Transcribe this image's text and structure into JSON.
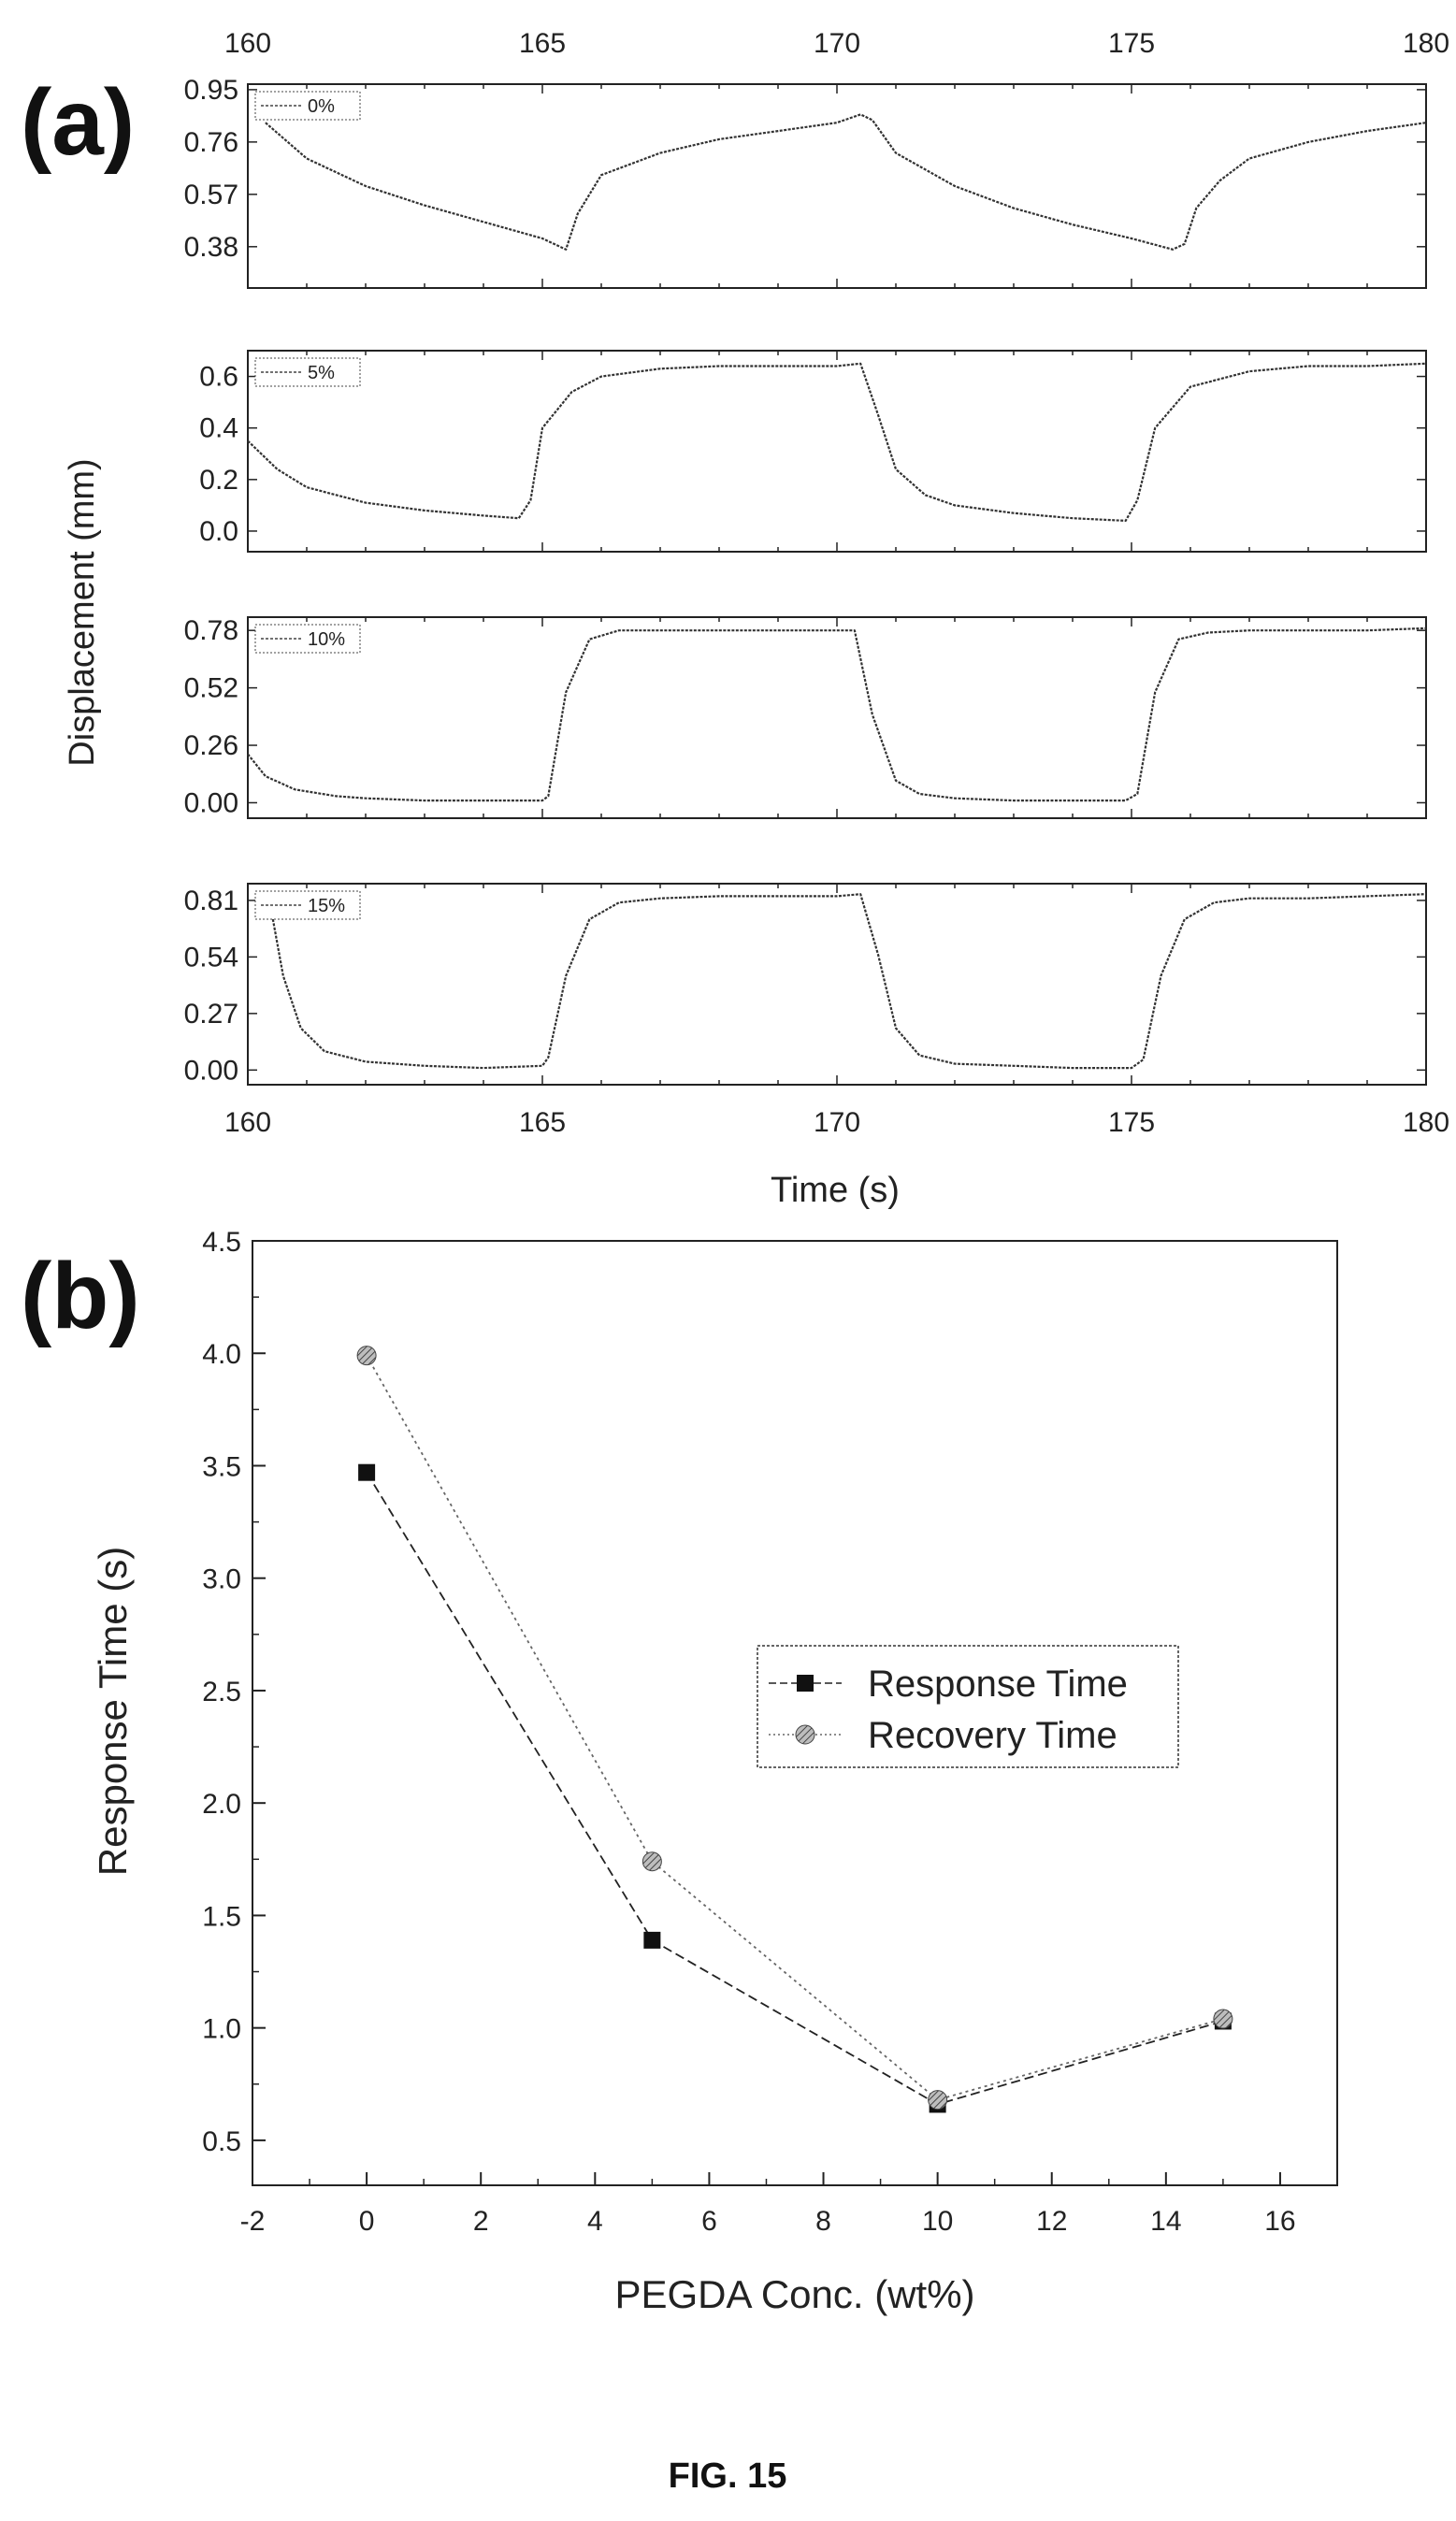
{
  "figure_caption": "FIG. 15",
  "chart_data": [
    {
      "type": "line",
      "panel_label": "(a)",
      "xlabel": "Time (s)",
      "ylabel": "Displacement (mm)",
      "x_ticks": [
        "160",
        "165",
        "170",
        "175",
        "180"
      ],
      "xlim": [
        160,
        180
      ],
      "grid": false,
      "subplots": [
        {
          "legend": "0%",
          "ylim": [
            0.23,
            0.97
          ],
          "y_ticks": [
            "0.95",
            "0.76",
            "0.57",
            "0.38"
          ],
          "y_tick_values": [
            0.95,
            0.76,
            0.57,
            0.38
          ],
          "x": [
            160.3,
            161,
            162,
            163,
            164,
            165,
            165.2,
            165.4,
            165.6,
            166,
            167,
            168,
            169,
            170,
            170.4,
            170.6,
            171,
            172,
            173,
            174,
            175,
            175.7,
            175.9,
            176.1,
            176.5,
            177,
            178,
            179,
            180
          ],
          "y": [
            0.83,
            0.7,
            0.6,
            0.53,
            0.47,
            0.41,
            0.39,
            0.37,
            0.5,
            0.64,
            0.72,
            0.77,
            0.8,
            0.83,
            0.86,
            0.84,
            0.72,
            0.6,
            0.52,
            0.46,
            0.41,
            0.37,
            0.39,
            0.52,
            0.62,
            0.7,
            0.76,
            0.8,
            0.83
          ]
        },
        {
          "legend": "5%",
          "ylim": [
            -0.08,
            0.7
          ],
          "y_ticks": [
            "0.6",
            "0.4",
            "0.2",
            "0.0"
          ],
          "y_tick_values": [
            0.6,
            0.4,
            0.2,
            0.0
          ],
          "x": [
            160,
            160.5,
            161,
            162,
            163,
            164,
            164.6,
            164.8,
            165,
            165.5,
            166,
            167,
            168,
            169,
            170,
            170.4,
            170.7,
            171,
            171.5,
            172,
            173,
            174,
            174.9,
            175.1,
            175.4,
            176,
            177,
            178,
            179,
            180
          ],
          "y": [
            0.35,
            0.24,
            0.17,
            0.11,
            0.08,
            0.06,
            0.05,
            0.12,
            0.4,
            0.54,
            0.6,
            0.63,
            0.64,
            0.64,
            0.64,
            0.65,
            0.45,
            0.24,
            0.14,
            0.1,
            0.07,
            0.05,
            0.04,
            0.12,
            0.4,
            0.56,
            0.62,
            0.64,
            0.64,
            0.65
          ]
        },
        {
          "legend": "10%",
          "ylim": [
            -0.07,
            0.84
          ],
          "y_ticks": [
            "0.78",
            "0.52",
            "0.26",
            "0.00"
          ],
          "y_tick_values": [
            0.78,
            0.52,
            0.26,
            0.0
          ],
          "x": [
            160,
            160.3,
            160.8,
            161.5,
            162,
            163,
            164,
            165,
            165.1,
            165.4,
            165.8,
            166.3,
            167,
            168,
            169,
            170,
            170.3,
            170.6,
            171,
            171.4,
            172,
            173,
            174,
            174.9,
            175.1,
            175.4,
            175.8,
            176.3,
            177,
            178,
            179,
            180
          ],
          "y": [
            0.22,
            0.12,
            0.06,
            0.03,
            0.02,
            0.01,
            0.01,
            0.01,
            0.03,
            0.5,
            0.74,
            0.78,
            0.78,
            0.78,
            0.78,
            0.78,
            0.78,
            0.4,
            0.1,
            0.04,
            0.02,
            0.01,
            0.01,
            0.01,
            0.04,
            0.5,
            0.74,
            0.77,
            0.78,
            0.78,
            0.78,
            0.79
          ]
        },
        {
          "legend": "15%",
          "ylim": [
            -0.07,
            0.89
          ],
          "y_ticks": [
            "0.81",
            "0.54",
            "0.27",
            "0.00"
          ],
          "y_tick_values": [
            0.81,
            0.54,
            0.27,
            0.0
          ],
          "x": [
            160.4,
            160.6,
            160.9,
            161.3,
            162,
            163,
            164,
            165,
            165.1,
            165.4,
            165.8,
            166.3,
            167,
            168,
            169,
            170,
            170.4,
            170.7,
            171,
            171.4,
            172,
            173,
            174,
            175,
            175.2,
            175.5,
            175.9,
            176.4,
            177,
            178,
            179,
            180
          ],
          "y": [
            0.76,
            0.45,
            0.2,
            0.09,
            0.04,
            0.02,
            0.01,
            0.02,
            0.06,
            0.45,
            0.72,
            0.8,
            0.82,
            0.83,
            0.83,
            0.83,
            0.84,
            0.55,
            0.2,
            0.07,
            0.03,
            0.02,
            0.01,
            0.01,
            0.05,
            0.45,
            0.72,
            0.8,
            0.82,
            0.82,
            0.83,
            0.84
          ]
        }
      ]
    },
    {
      "type": "line",
      "panel_label": "(b)",
      "xlabel": "PEGDA Conc. (wt%)",
      "ylabel": "Response Time (s)",
      "xlim": [
        -2,
        17
      ],
      "ylim": [
        0.3,
        4.5
      ],
      "x_ticks": [
        "-2",
        "0",
        "2",
        "4",
        "6",
        "8",
        "10",
        "12",
        "14",
        "16"
      ],
      "x_tick_values": [
        -2,
        0,
        2,
        4,
        6,
        8,
        10,
        12,
        14,
        16
      ],
      "y_ticks": [
        "4.5",
        "4.0",
        "3.5",
        "3.0",
        "2.5",
        "2.0",
        "1.5",
        "1.0",
        "0.5"
      ],
      "y_tick_values": [
        4.5,
        4.0,
        3.5,
        3.0,
        2.5,
        2.0,
        1.5,
        1.0,
        0.5
      ],
      "legend_position": "center-right",
      "grid": false,
      "series": [
        {
          "name": "Response Time",
          "x": [
            0,
            5,
            10,
            15
          ],
          "values": [
            3.47,
            1.39,
            0.66,
            1.03
          ]
        },
        {
          "name": "Recovery Time",
          "x": [
            0,
            5,
            10,
            15
          ],
          "values": [
            3.99,
            1.74,
            0.68,
            1.04
          ]
        }
      ]
    }
  ]
}
